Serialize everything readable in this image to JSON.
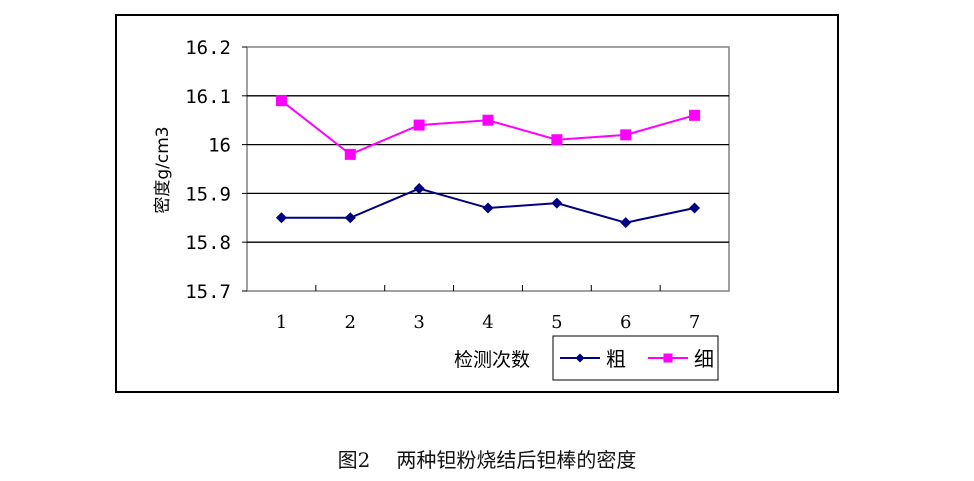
{
  "chart_data": {
    "type": "line",
    "title": "",
    "xlabel": "检测次数",
    "ylabel": "密度g/cm3",
    "categories": [
      "1",
      "2",
      "3",
      "4",
      "5",
      "6",
      "7"
    ],
    "series": [
      {
        "name": "粗",
        "color": "#000080",
        "marker": "diamond",
        "values": [
          15.85,
          15.85,
          15.91,
          15.87,
          15.88,
          15.84,
          15.87
        ]
      },
      {
        "name": "细",
        "color": "#FF00FF",
        "marker": "square",
        "values": [
          16.09,
          15.98,
          16.04,
          16.05,
          16.01,
          16.02,
          16.06
        ]
      }
    ],
    "ylim": [
      15.7,
      16.2
    ],
    "yticks": [
      "16.2",
      "16.1",
      "16",
      "15.9",
      "15.8",
      "15.7"
    ],
    "grid": true,
    "legend_position": "bottom-right"
  },
  "caption": {
    "figure_number": "图2",
    "text": "两种钽粉烧结后钽棒的密度"
  }
}
